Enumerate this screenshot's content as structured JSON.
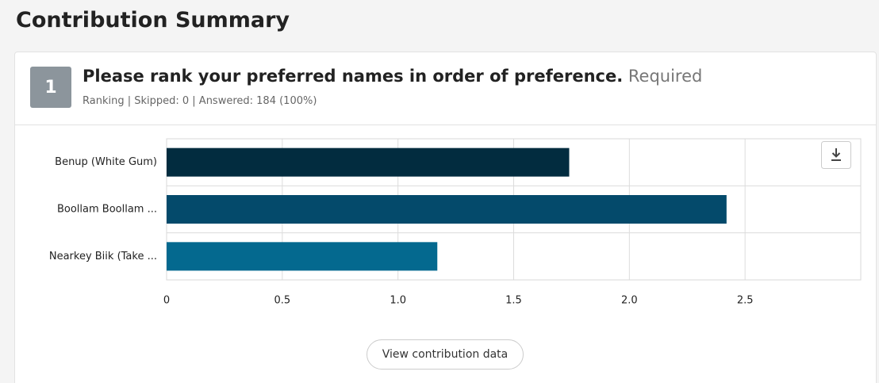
{
  "header": {
    "title": "Contribution Summary"
  },
  "question": {
    "number": "1",
    "text": "Please rank your preferred names in order of preference.",
    "required": "Required",
    "meta": "Ranking | Skipped: 0 | Answered: 184 (100%)"
  },
  "chart_data": {
    "type": "hbar",
    "categories": [
      "Benup (White Gum)",
      "Boollam Boollam ...",
      "Nearkey Biik (Take ..."
    ],
    "values": [
      1.74,
      2.42,
      1.17
    ],
    "colors": [
      "#022c3f",
      "#044a6b",
      "#04698f"
    ],
    "xlim": [
      0,
      3
    ],
    "xticks": [
      0,
      0.5,
      {
        "value": 1,
        "label": "1.0"
      },
      1.5,
      {
        "value": 2,
        "label": "2.0"
      },
      2.5
    ],
    "grid": true
  },
  "button": {
    "label": "View contribution data"
  }
}
